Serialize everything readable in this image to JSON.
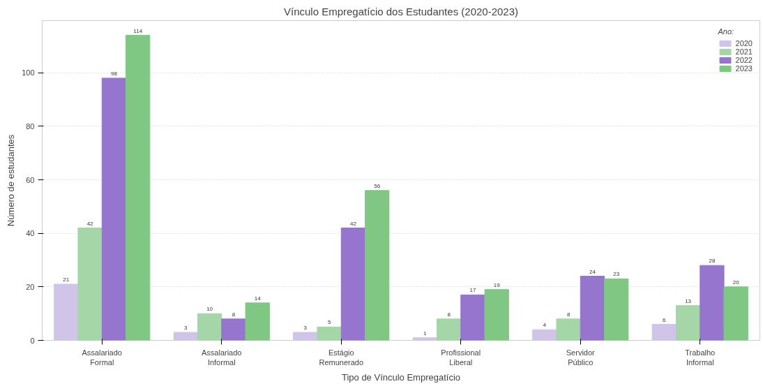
{
  "chart_data": {
    "type": "bar",
    "title": "Vínculo Empregatício dos Estudantes (2020-2023)",
    "xlabel": "Tipo de Vínculo Empregatício",
    "ylabel": "Número de estudantes",
    "legend_title": "Ano:",
    "categories": [
      "Assalariado Formal",
      "Assalariado Informal",
      "Estágio Remunerado",
      "Profissional Liberal",
      "Servidor Público",
      "Trabalho Informal"
    ],
    "series": [
      {
        "name": "2020",
        "color": "#d1c4e9",
        "values": [
          21,
          3,
          3,
          1,
          4,
          6
        ]
      },
      {
        "name": "2021",
        "color": "#a5d6a7",
        "values": [
          42,
          10,
          5,
          8,
          8,
          13
        ]
      },
      {
        "name": "2022",
        "color": "#9575cd",
        "values": [
          98,
          8,
          42,
          17,
          24,
          28
        ]
      },
      {
        "name": "2023",
        "color": "#81c784",
        "values": [
          114,
          14,
          56,
          19,
          23,
          20
        ]
      }
    ],
    "ylim": [
      0,
      119.5
    ],
    "yticks": [
      0,
      20,
      40,
      60,
      80,
      100
    ],
    "grid": "y",
    "legend": "top right",
    "data_labels": true
  }
}
